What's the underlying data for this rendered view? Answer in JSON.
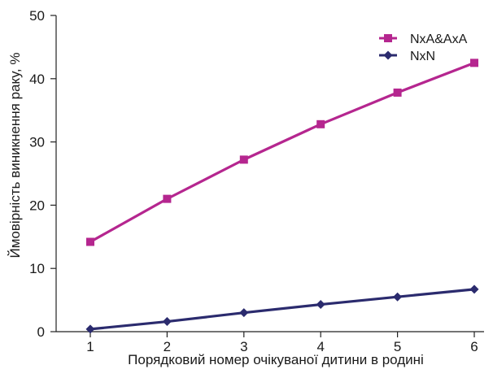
{
  "chart_data": {
    "type": "line",
    "title": "",
    "xlabel": "Порядковий номер очікуваної дитини в родині",
    "ylabel": "Ймовірність виникнення раку, %",
    "x": [
      1,
      2,
      3,
      4,
      5,
      6
    ],
    "xticks": [
      "1",
      "2",
      "3",
      "4",
      "5",
      "6"
    ],
    "yticks": [
      "0",
      "10",
      "20",
      "30",
      "40",
      "50"
    ],
    "ylim": [
      0,
      50
    ],
    "grid": false,
    "legend_position": "top-right",
    "series": [
      {
        "name": "NxA&AxA",
        "color": "#b5268f",
        "marker": "square",
        "values": [
          14.2,
          21.0,
          27.2,
          32.8,
          37.8,
          42.5
        ]
      },
      {
        "name": "NxN",
        "color": "#2b2b6e",
        "marker": "diamond",
        "values": [
          0.4,
          1.6,
          3.0,
          4.3,
          5.5,
          6.7
        ]
      }
    ]
  }
}
